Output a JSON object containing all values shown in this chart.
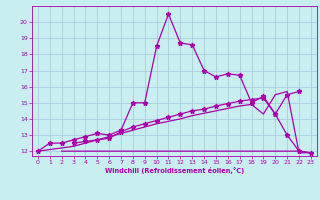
{
  "xlabel": "Windchill (Refroidissement éolien,°C)",
  "xlim": [
    -0.5,
    23.5
  ],
  "ylim": [
    11.7,
    21.0
  ],
  "yticks": [
    12,
    13,
    14,
    15,
    16,
    17,
    18,
    19,
    20
  ],
  "xticks": [
    0,
    1,
    2,
    3,
    4,
    5,
    6,
    7,
    8,
    9,
    10,
    11,
    12,
    13,
    14,
    15,
    16,
    17,
    18,
    19,
    20,
    21,
    22,
    23
  ],
  "background_color": "#c8eef0",
  "grid_color": "#a0c8d8",
  "line_color": "#aa00aa",
  "line1_x": [
    0,
    1,
    2,
    3,
    4,
    5,
    6,
    7,
    8,
    9,
    10,
    11,
    12,
    13,
    14,
    15,
    16,
    17,
    18,
    19,
    20,
    21,
    22,
    23
  ],
  "line1_y": [
    12.0,
    12.5,
    12.5,
    12.7,
    12.9,
    13.1,
    13.0,
    13.3,
    15.0,
    15.0,
    18.5,
    20.5,
    18.7,
    18.6,
    17.0,
    16.6,
    16.8,
    16.7,
    15.0,
    15.4,
    14.3,
    13.0,
    12.0,
    11.9
  ],
  "line2_x": [
    3,
    4,
    5,
    6,
    7,
    8,
    9,
    10,
    11,
    12,
    13,
    14,
    15,
    16,
    17,
    18,
    19,
    20,
    21,
    22
  ],
  "line2_y": [
    12.5,
    12.6,
    12.7,
    12.8,
    13.2,
    13.5,
    13.7,
    13.9,
    14.1,
    14.3,
    14.5,
    14.6,
    14.8,
    14.95,
    15.1,
    15.2,
    15.3,
    14.3,
    15.5,
    15.7
  ],
  "line3_x": [
    2,
    3,
    4,
    5,
    6,
    7,
    8,
    9,
    10,
    11,
    12,
    13,
    14,
    15,
    16,
    17,
    18,
    19,
    20,
    21,
    22,
    23
  ],
  "line3_y": [
    12.0,
    12.0,
    12.0,
    12.0,
    12.0,
    12.0,
    12.0,
    12.0,
    12.0,
    12.0,
    12.0,
    12.0,
    12.0,
    12.0,
    12.0,
    12.0,
    12.0,
    12.0,
    12.0,
    12.0,
    12.0,
    11.9
  ],
  "line4_x": [
    0,
    1,
    2,
    3,
    4,
    5,
    6,
    7,
    8,
    9,
    10,
    11,
    12,
    13,
    14,
    15,
    16,
    17,
    18,
    19,
    20,
    21,
    22,
    23
  ],
  "line4_y": [
    12.0,
    12.1,
    12.2,
    12.3,
    12.5,
    12.7,
    12.9,
    13.1,
    13.3,
    13.5,
    13.7,
    13.85,
    14.0,
    14.2,
    14.35,
    14.5,
    14.65,
    14.8,
    14.9,
    14.3,
    15.5,
    15.7,
    11.9,
    11.9
  ]
}
